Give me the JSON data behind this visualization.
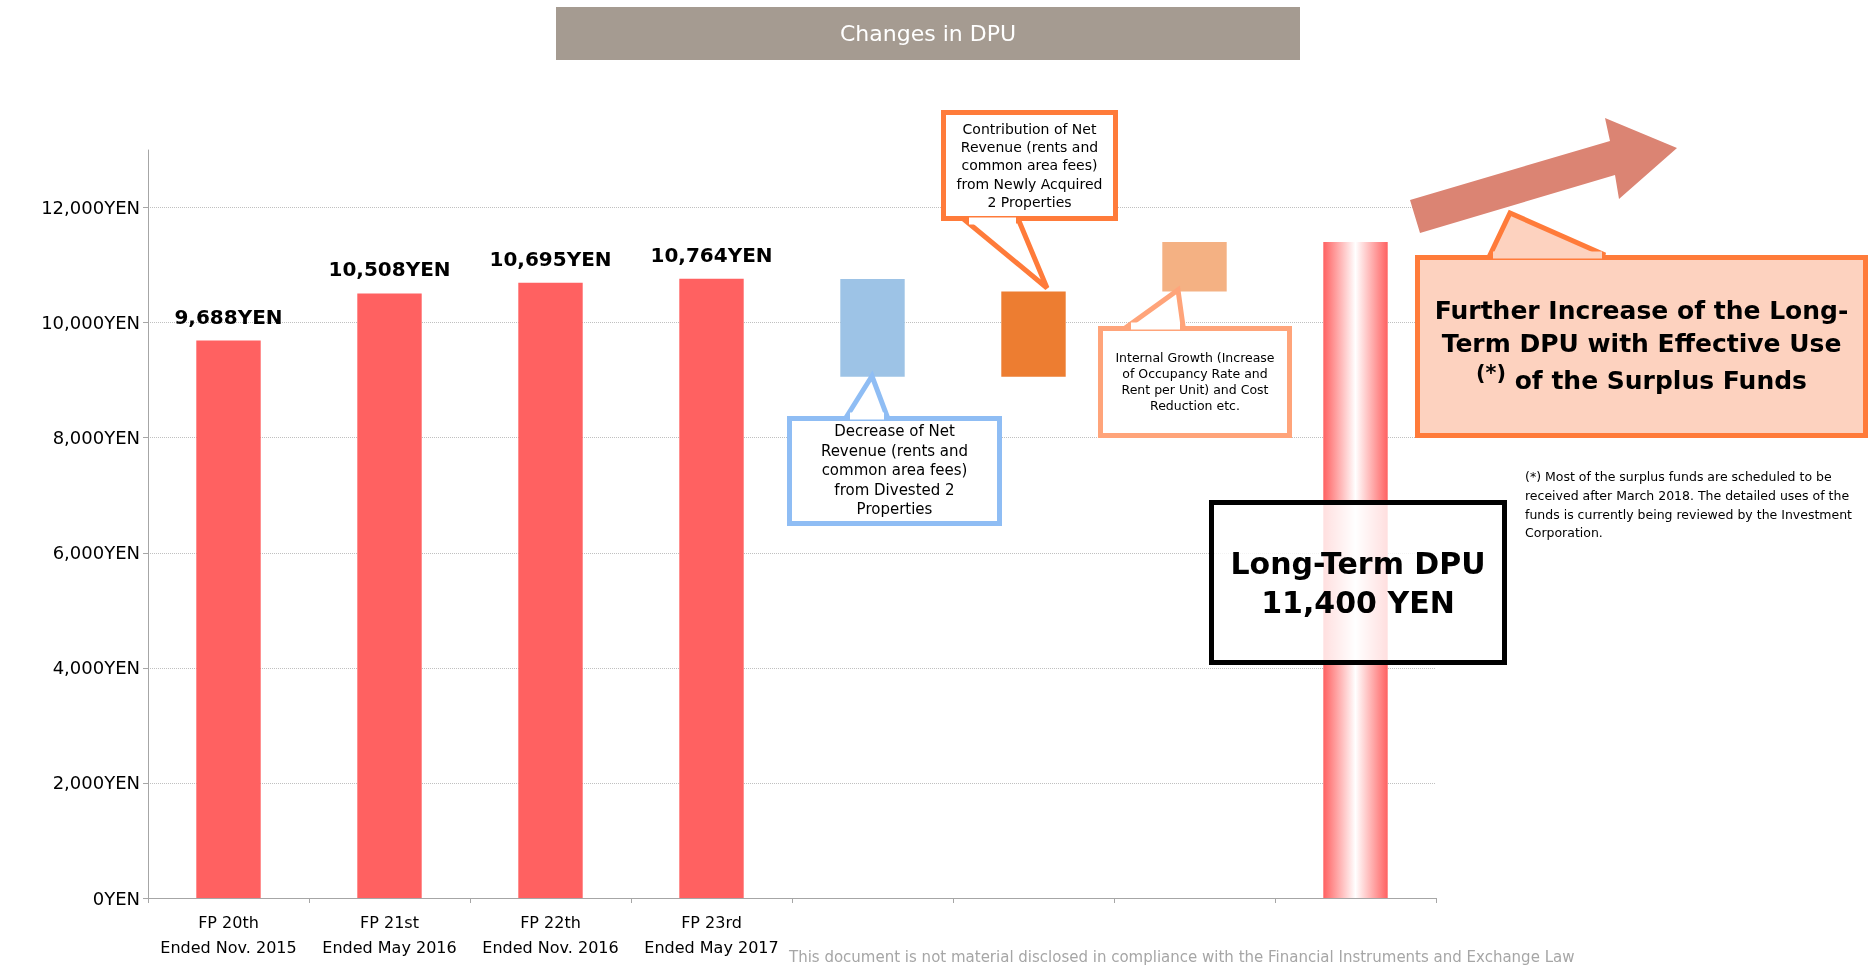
{
  "chart_data": {
    "type": "bar",
    "title": "Changes in DPU",
    "categories": [
      "FP 20th\nEnded Nov. 2015",
      "FP 21st\nEnded May 2016",
      "FP 22th\nEnded Nov. 2016",
      "FP 23rd\nEnded May 2017",
      null,
      null,
      null,
      null
    ],
    "values": [
      9688,
      10508,
      10695,
      10764,
      1700,
      1480,
      860,
      11400
    ],
    "base": [
      0,
      0,
      0,
      0,
      9060,
      9060,
      10540,
      0
    ],
    "colors": [
      "#ff6161",
      "#ff6161",
      "#ff6161",
      "#ff6161",
      "#9dc3e6",
      "#ed7d31",
      "#f4b183",
      "#ff6161"
    ],
    "value_labels": [
      "9,688YEN",
      "10,508YEN",
      "10,695YEN",
      "10,764YEN",
      null,
      null,
      null,
      null
    ],
    "ylim": [
      0,
      13000
    ],
    "yticks": [
      {
        "value": 0,
        "label": "0YEN"
      },
      {
        "value": 2000,
        "label": "2,000YEN"
      },
      {
        "value": 4000,
        "label": "4,000YEN"
      },
      {
        "value": 6000,
        "label": "6,000YEN"
      },
      {
        "value": 8000,
        "label": "8,000YEN"
      },
      {
        "value": 10000,
        "label": "10,000YEN"
      },
      {
        "value": 12000,
        "label": "12,000YEN"
      }
    ],
    "grid": "y",
    "annotations": [
      "Decrease of Net Revenue (rents and common area fees) from Divested 2 Properties",
      "Contribution of Net Revenue (rents and common area fees) from Newly Acquired 2 Properties",
      "Internal Growth (Increase of Occupancy Rate and Rent per Unit) and Cost Reduction etc.",
      "Long-Term DPU 11,400 YEN",
      "Further Increase of the Long-Term DPU with Effective Use $^{(*)}$ of the Surplus Funds",
      "(*)  Most of the surplus funds are scheduled to be received after March 2018.  The detailed uses of the funds is currently being reviewed by the Investment Corporation.",
      "This document is not material disclosed in compliance with the Financial Instruments and Exchange Law"
    ]
  }
}
